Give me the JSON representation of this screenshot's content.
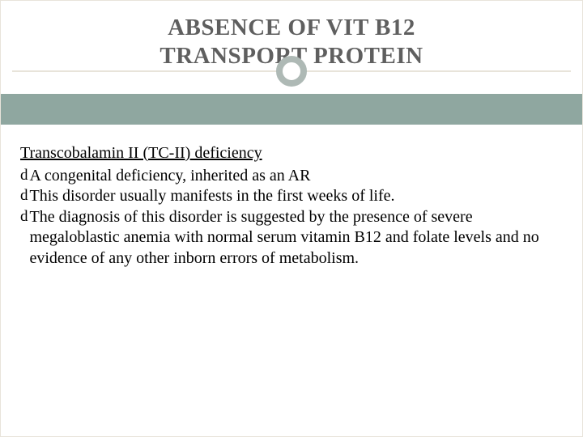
{
  "slide": {
    "title": "ABSENCE OF VIT B12\nTRANSPORT   PROTEIN",
    "title_color": "#5f5f5f",
    "title_fontsize": 29,
    "band_color": "#8fa7a0",
    "circle_border_color": "#aeb9b5",
    "divider_color": "#e8e4da",
    "background_color": "#ffffff",
    "subheading": "Transcobalamin II (TC-II) deficiency",
    "bullets": [
      "A congenital deficiency, inherited as an AR",
      "This disorder usually manifests in the first weeks of life.",
      "The diagnosis of this disorder is suggested by the presence of severe megaloblastic anemia with normal serum vitamin B12 and folate levels and no evidence of any other inborn errors of metabolism."
    ],
    "bullet_glyph": "d",
    "body_fontsize": 20,
    "body_color": "#000000"
  }
}
